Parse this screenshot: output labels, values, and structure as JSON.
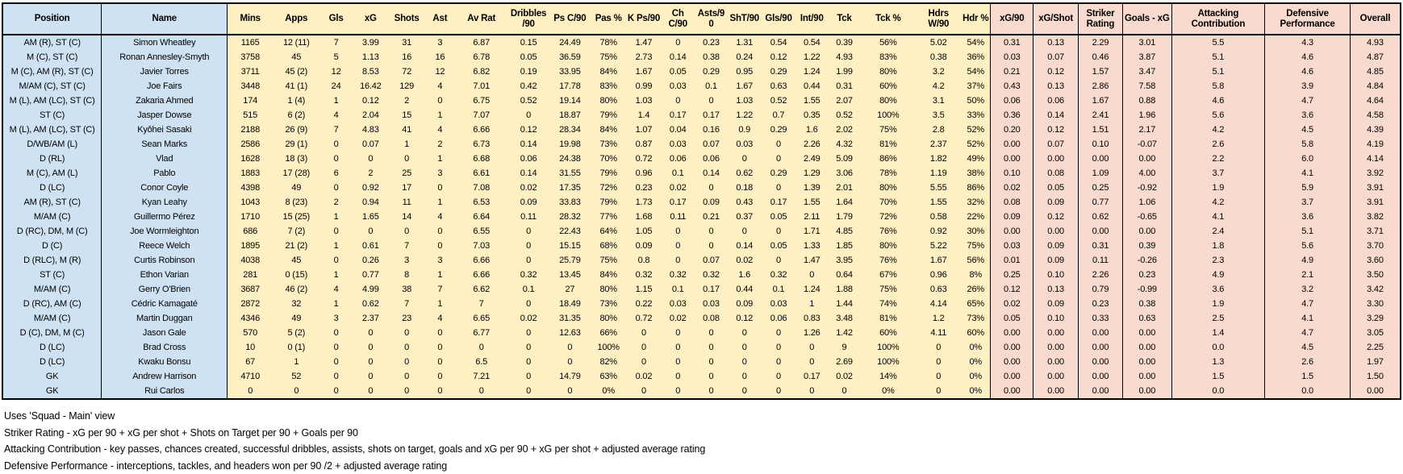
{
  "colors": {
    "position_name_bg": "#cfe2f3",
    "stats_bg": "#fff0c4",
    "derived_bg": "#f8dbce",
    "border": "#000000"
  },
  "table": {
    "columns": [
      "Position",
      "Name",
      "Mins",
      "Apps",
      "Gls",
      "xG",
      "Shots",
      "Ast",
      "Av Rat",
      "Dribbles /90",
      "Ps C/90",
      "Pas %",
      "K Ps/90",
      "Ch C/90",
      "Asts/90",
      "ShT/90",
      "Gls/90",
      "Int/90",
      "Tck",
      "Tck %",
      "Hdrs W/90",
      "Hdr %",
      "xG/90",
      "xG/Shot",
      "Striker Rating",
      "Goals - xG",
      "Attacking Contribution",
      "Defensive Performance",
      "Overall"
    ],
    "rows": [
      [
        "AM (R), ST (C)",
        "Simon Wheatley",
        "1165",
        "12 (11)",
        "7",
        "3.99",
        "31",
        "3",
        "6.87",
        "0.15",
        "24.49",
        "78%",
        "1.47",
        "0",
        "0.23",
        "1.31",
        "0.54",
        "0.54",
        "0.39",
        "56%",
        "5.02",
        "54%",
        "0.31",
        "0.13",
        "2.29",
        "3.01",
        "5.5",
        "4.3",
        "4.93"
      ],
      [
        "M (C), ST (C)",
        "Ronan Annesley-Smyth",
        "3758",
        "45",
        "5",
        "1.13",
        "16",
        "16",
        "6.78",
        "0.05",
        "36.59",
        "75%",
        "2.73",
        "0.14",
        "0.38",
        "0.24",
        "0.12",
        "1.22",
        "4.93",
        "83%",
        "0.38",
        "36%",
        "0.03",
        "0.07",
        "0.46",
        "3.87",
        "5.1",
        "4.6",
        "4.87"
      ],
      [
        "M (C), AM (R), ST (C)",
        "Javier Torres",
        "3711",
        "45 (2)",
        "12",
        "8.53",
        "72",
        "12",
        "6.82",
        "0.19",
        "33.95",
        "84%",
        "1.67",
        "0.05",
        "0.29",
        "0.95",
        "0.29",
        "1.24",
        "1.99",
        "80%",
        "3.2",
        "54%",
        "0.21",
        "0.12",
        "1.57",
        "3.47",
        "5.1",
        "4.6",
        "4.85"
      ],
      [
        "M/AM (C), ST (C)",
        "Joe Fairs",
        "3448",
        "41 (1)",
        "24",
        "16.42",
        "129",
        "4",
        "7.01",
        "0.42",
        "17.78",
        "83%",
        "0.99",
        "0.03",
        "0.1",
        "1.67",
        "0.63",
        "0.44",
        "0.31",
        "60%",
        "4.2",
        "37%",
        "0.43",
        "0.13",
        "2.86",
        "7.58",
        "5.8",
        "3.9",
        "4.84"
      ],
      [
        "M (L), AM (LC), ST (C)",
        "Zakaria Ahmed",
        "174",
        "1 (4)",
        "1",
        "0.12",
        "2",
        "0",
        "6.75",
        "0.52",
        "19.14",
        "80%",
        "1.03",
        "0",
        "0",
        "1.03",
        "0.52",
        "1.55",
        "2.07",
        "80%",
        "3.1",
        "50%",
        "0.06",
        "0.06",
        "1.67",
        "0.88",
        "4.6",
        "4.7",
        "4.64"
      ],
      [
        "ST (C)",
        "Jasper Dowse",
        "515",
        "6 (2)",
        "4",
        "2.04",
        "15",
        "1",
        "7.07",
        "0",
        "18.87",
        "79%",
        "1.4",
        "0.17",
        "0.17",
        "1.22",
        "0.7",
        "0.35",
        "0.52",
        "100%",
        "3.5",
        "33%",
        "0.36",
        "0.14",
        "2.41",
        "1.96",
        "5.6",
        "3.6",
        "4.58"
      ],
      [
        "M (L), AM (LC), ST (C)",
        "Kyôhei Sasaki",
        "2188",
        "26 (9)",
        "7",
        "4.83",
        "41",
        "4",
        "6.66",
        "0.12",
        "28.34",
        "84%",
        "1.07",
        "0.04",
        "0.16",
        "0.9",
        "0.29",
        "1.6",
        "2.02",
        "75%",
        "2.8",
        "52%",
        "0.20",
        "0.12",
        "1.51",
        "2.17",
        "4.2",
        "4.5",
        "4.39"
      ],
      [
        "D/WB/AM (L)",
        "Sean Marks",
        "2586",
        "29 (1)",
        "0",
        "0.07",
        "1",
        "2",
        "6.73",
        "0.14",
        "19.98",
        "73%",
        "0.87",
        "0.03",
        "0.07",
        "0.03",
        "0",
        "2.26",
        "4.32",
        "81%",
        "2.37",
        "52%",
        "0.00",
        "0.07",
        "0.10",
        "-0.07",
        "2.6",
        "5.8",
        "4.19"
      ],
      [
        "D (RL)",
        "Vlad",
        "1628",
        "18 (3)",
        "0",
        "0",
        "0",
        "1",
        "6.68",
        "0.06",
        "24.38",
        "70%",
        "0.72",
        "0.06",
        "0.06",
        "0",
        "0",
        "2.49",
        "5.09",
        "86%",
        "1.82",
        "49%",
        "0.00",
        "0.00",
        "0.00",
        "0.00",
        "2.2",
        "6.0",
        "4.14"
      ],
      [
        "M (C), AM (L)",
        "Pablo",
        "1883",
        "17 (28)",
        "6",
        "2",
        "25",
        "3",
        "6.61",
        "0.14",
        "31.55",
        "79%",
        "0.96",
        "0.1",
        "0.14",
        "0.62",
        "0.29",
        "1.29",
        "3.06",
        "78%",
        "1.19",
        "38%",
        "0.10",
        "0.08",
        "1.09",
        "4.00",
        "3.7",
        "4.1",
        "3.92"
      ],
      [
        "D (LC)",
        "Conor Coyle",
        "4398",
        "49",
        "0",
        "0.92",
        "17",
        "0",
        "7.08",
        "0.02",
        "17.35",
        "72%",
        "0.23",
        "0.02",
        "0",
        "0.18",
        "0",
        "1.39",
        "2.01",
        "80%",
        "5.55",
        "86%",
        "0.02",
        "0.05",
        "0.25",
        "-0.92",
        "1.9",
        "5.9",
        "3.91"
      ],
      [
        "AM (R), ST (C)",
        "Kyan Leahy",
        "1043",
        "8 (23)",
        "2",
        "0.94",
        "11",
        "1",
        "6.53",
        "0.09",
        "33.83",
        "79%",
        "1.73",
        "0.17",
        "0.09",
        "0.43",
        "0.17",
        "1.55",
        "1.64",
        "70%",
        "1.55",
        "32%",
        "0.08",
        "0.09",
        "0.77",
        "1.06",
        "4.2",
        "3.7",
        "3.91"
      ],
      [
        "M/AM (C)",
        "Guillermo Pérez",
        "1710",
        "15 (25)",
        "1",
        "1.65",
        "14",
        "4",
        "6.64",
        "0.11",
        "28.32",
        "77%",
        "1.68",
        "0.11",
        "0.21",
        "0.37",
        "0.05",
        "2.11",
        "1.79",
        "72%",
        "0.58",
        "22%",
        "0.09",
        "0.12",
        "0.62",
        "-0.65",
        "4.1",
        "3.6",
        "3.82"
      ],
      [
        "D (RC), DM, M (C)",
        "Joe Wormleighton",
        "686",
        "7 (2)",
        "0",
        "0",
        "0",
        "0",
        "6.55",
        "0",
        "22.43",
        "64%",
        "1.05",
        "0",
        "0",
        "0",
        "0",
        "1.71",
        "4.85",
        "76%",
        "0.92",
        "30%",
        "0.00",
        "0.00",
        "0.00",
        "0.00",
        "2.4",
        "5.1",
        "3.71"
      ],
      [
        "D (C)",
        "Reece Welch",
        "1895",
        "21 (2)",
        "1",
        "0.61",
        "7",
        "0",
        "7.03",
        "0",
        "15.15",
        "68%",
        "0.09",
        "0",
        "0",
        "0.14",
        "0.05",
        "1.33",
        "1.85",
        "80%",
        "5.22",
        "75%",
        "0.03",
        "0.09",
        "0.31",
        "0.39",
        "1.8",
        "5.6",
        "3.70"
      ],
      [
        "D (RLC), M (R)",
        "Curtis Robinson",
        "4038",
        "45",
        "0",
        "0.26",
        "3",
        "3",
        "6.66",
        "0",
        "25.79",
        "75%",
        "0.8",
        "0",
        "0.07",
        "0.02",
        "0",
        "1.47",
        "3.95",
        "76%",
        "1.67",
        "56%",
        "0.01",
        "0.09",
        "0.11",
        "-0.26",
        "2.3",
        "4.9",
        "3.60"
      ],
      [
        "ST (C)",
        "Ethon Varian",
        "281",
        "0 (15)",
        "1",
        "0.77",
        "8",
        "1",
        "6.66",
        "0.32",
        "13.45",
        "84%",
        "0.32",
        "0.32",
        "0.32",
        "1.6",
        "0.32",
        "0",
        "0.64",
        "67%",
        "0.96",
        "8%",
        "0.25",
        "0.10",
        "2.26",
        "0.23",
        "4.9",
        "2.1",
        "3.50"
      ],
      [
        "M/AM (C)",
        "Gerry O'Brien",
        "3687",
        "46 (2)",
        "4",
        "4.99",
        "38",
        "7",
        "6.62",
        "0.1",
        "27",
        "80%",
        "1.15",
        "0.1",
        "0.17",
        "0.44",
        "0.1",
        "1.24",
        "1.88",
        "75%",
        "0.63",
        "26%",
        "0.12",
        "0.13",
        "0.79",
        "-0.99",
        "3.6",
        "3.2",
        "3.42"
      ],
      [
        "D (RC), AM (C)",
        "Cédric Kamagaté",
        "2872",
        "32",
        "1",
        "0.62",
        "7",
        "1",
        "7",
        "0",
        "18.49",
        "73%",
        "0.22",
        "0.03",
        "0.03",
        "0.09",
        "0.03",
        "1",
        "1.44",
        "74%",
        "4.14",
        "65%",
        "0.02",
        "0.09",
        "0.23",
        "0.38",
        "1.9",
        "4.7",
        "3.30"
      ],
      [
        "M/AM (C)",
        "Martin Duggan",
        "4346",
        "49",
        "3",
        "2.37",
        "23",
        "4",
        "6.65",
        "0.02",
        "31.35",
        "80%",
        "0.72",
        "0.02",
        "0.08",
        "0.12",
        "0.06",
        "0.83",
        "3.48",
        "81%",
        "1.2",
        "73%",
        "0.05",
        "0.10",
        "0.33",
        "0.63",
        "2.5",
        "4.1",
        "3.29"
      ],
      [
        "D (C), DM, M (C)",
        "Jason Gale",
        "570",
        "5 (2)",
        "0",
        "0",
        "0",
        "0",
        "6.77",
        "0",
        "12.63",
        "66%",
        "0",
        "0",
        "0",
        "0",
        "0",
        "1.26",
        "1.42",
        "60%",
        "4.11",
        "60%",
        "0.00",
        "0.00",
        "0.00",
        "0.00",
        "1.4",
        "4.7",
        "3.05"
      ],
      [
        "D (LC)",
        "Brad Cross",
        "10",
        "0 (1)",
        "0",
        "0",
        "0",
        "0",
        "0",
        "0",
        "0",
        "100%",
        "0",
        "0",
        "0",
        "0",
        "0",
        "0",
        "9",
        "100%",
        "0",
        "0%",
        "0.00",
        "0.00",
        "0.00",
        "0.00",
        "0.0",
        "4.5",
        "2.25"
      ],
      [
        "D (LC)",
        "Kwaku Bonsu",
        "67",
        "1",
        "0",
        "0",
        "0",
        "0",
        "6.5",
        "0",
        "0",
        "82%",
        "0",
        "0",
        "0",
        "0",
        "0",
        "0",
        "2.69",
        "100%",
        "0",
        "0%",
        "0.00",
        "0.00",
        "0.00",
        "0.00",
        "1.3",
        "2.6",
        "1.97"
      ],
      [
        "GK",
        "Andrew Harrison",
        "4710",
        "52",
        "0",
        "0",
        "0",
        "0",
        "7.21",
        "0",
        "14.79",
        "63%",
        "0.02",
        "0",
        "0",
        "0",
        "0",
        "0.17",
        "0.02",
        "14%",
        "0",
        "0%",
        "0.00",
        "0.00",
        "0.00",
        "0.00",
        "1.5",
        "1.5",
        "1.50"
      ],
      [
        "GK",
        "Rui Carlos",
        "0",
        "0",
        "0",
        "0",
        "0",
        "0",
        "0",
        "0",
        "0",
        "0%",
        "0",
        "0",
        "0",
        "0",
        "0",
        "0",
        "0",
        "0%",
        "0",
        "0%",
        "0.00",
        "0.00",
        "0.00",
        "0.00",
        "0.0",
        "0.0",
        "0.00"
      ]
    ]
  },
  "footnotes": [
    "Uses 'Squad - Main' view",
    "Striker Rating - xG per 90 + xG per shot + Shots on Target per 90 + Goals per 90",
    "Attacking Contribution - key passes, chances created, successful dribbles, assists, shots on target, goals and xG per 90 + xG per shot + adjusted average rating",
    "Defensive Performance - interceptions, tackles, and headers won per 90 /2 + adjusted average rating"
  ]
}
